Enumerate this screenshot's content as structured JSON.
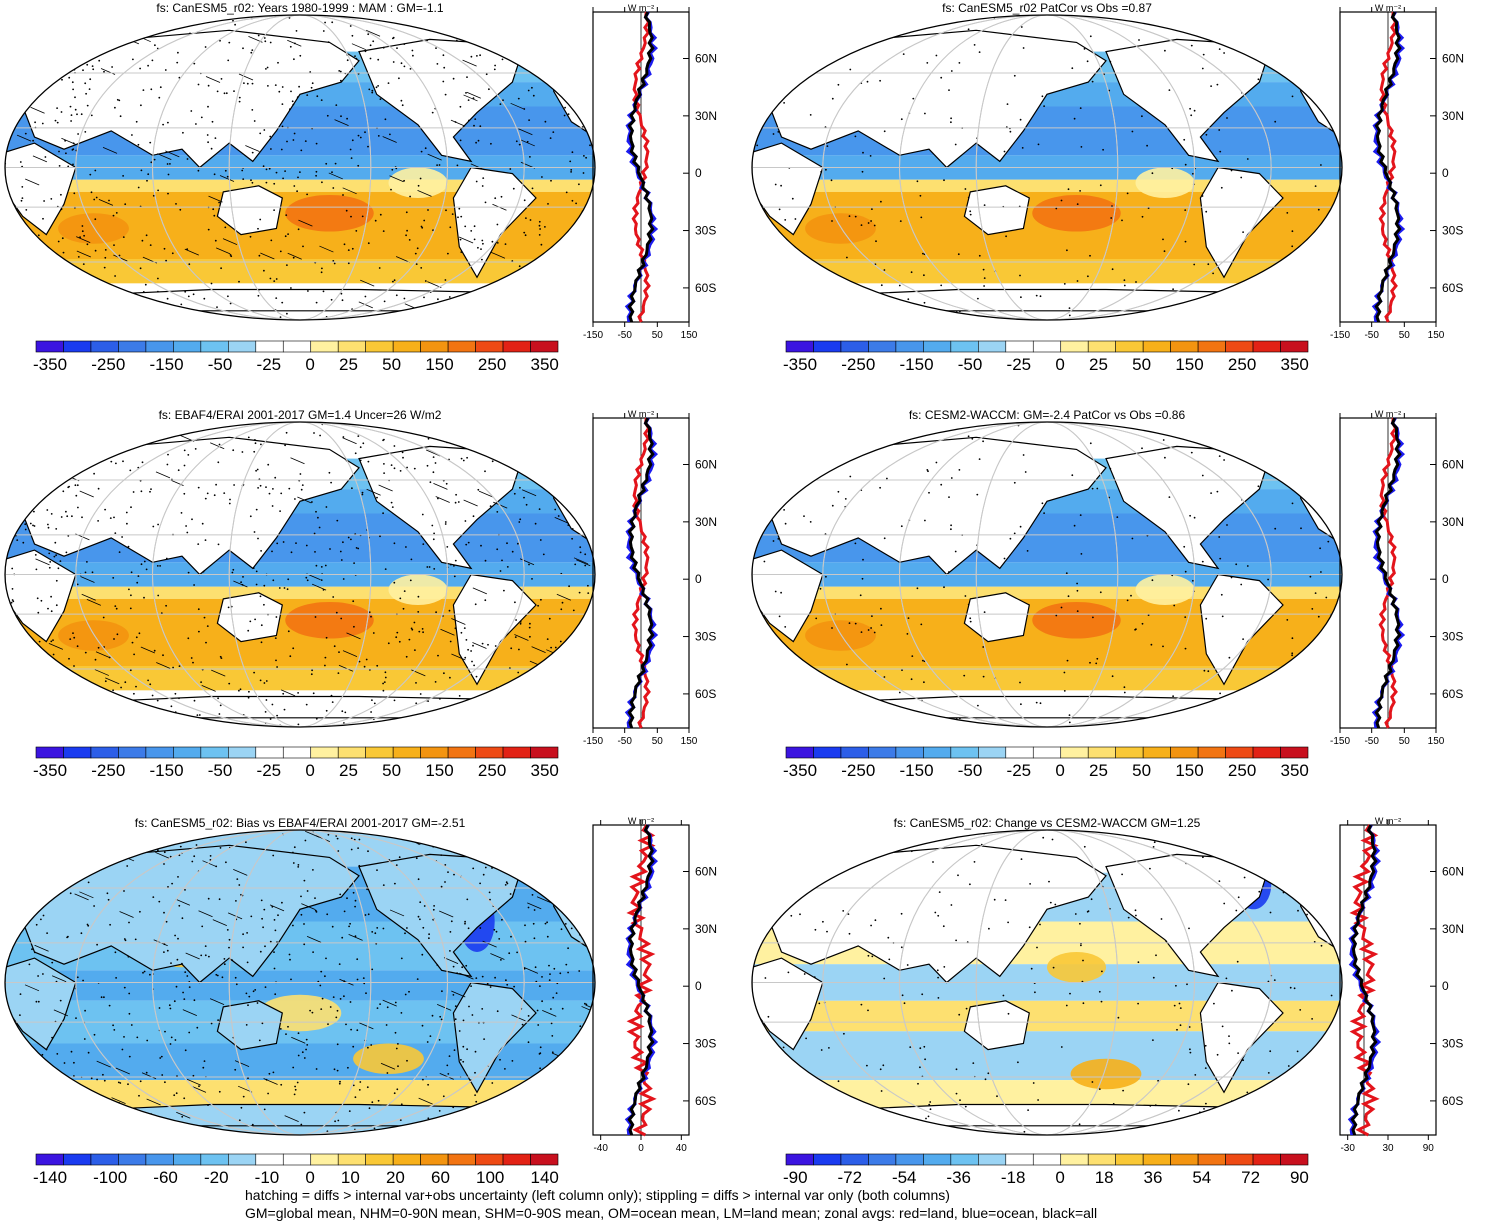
{
  "colors": {
    "land": "#ffffff",
    "ocean_blue": "#3ea4e8",
    "ocean_light_blue": "#8ccdf2",
    "ocean_orange": "#f7b922",
    "ocean_yellow": "#fde585",
    "zonal_land": "#e3141b",
    "zonal_ocean": "#1c1cf0",
    "zonal_all": "#000000"
  },
  "palette": [
    "#3b14e0",
    "#1a3bf0",
    "#2c5ee8",
    "#3c7be8",
    "#4896ec",
    "#53abee",
    "#6dc2f1",
    "#9bd4f4",
    "#ffffff",
    "#ffffff",
    "#fff1a0",
    "#fde070",
    "#f9c836",
    "#f7b01a",
    "#f39410",
    "#f27412",
    "#ee4a14",
    "#e22215",
    "#c8101e"
  ],
  "panels": [
    {
      "title": "fs: CanESM5_r02: Years 1980-1999 : MAM : GM=-1.1",
      "colorbar_labels": [
        "-350",
        "-250",
        "-150",
        "-50",
        "-25",
        "0",
        "25",
        "50",
        "150",
        "250",
        "350"
      ],
      "zonal_xticks": [
        "-150",
        "-50",
        "50",
        "150"
      ],
      "unit": "W m⁻²",
      "zonal_lat": [
        "60N",
        "30N",
        "0",
        "30S",
        "60S"
      ]
    },
    {
      "title": "fs: CanESM5_r02 PatCor vs Obs =0.87",
      "colorbar_labels": [
        "-350",
        "-250",
        "-150",
        "-50",
        "-25",
        "0",
        "25",
        "50",
        "150",
        "250",
        "350"
      ],
      "zonal_xticks": [
        "-150",
        "-50",
        "50",
        "150"
      ],
      "unit": "W m⁻²",
      "zonal_lat": [
        "60N",
        "30N",
        "0",
        "30S",
        "60S"
      ]
    },
    {
      "title": "fs: EBAF4/ERAI 2001-2017 GM=1.4 Uncer=26 W/m2",
      "colorbar_labels": [
        "-350",
        "-250",
        "-150",
        "-50",
        "-25",
        "0",
        "25",
        "50",
        "150",
        "250",
        "350"
      ],
      "zonal_xticks": [
        "-150",
        "-50",
        "50",
        "150"
      ],
      "unit": "W m⁻²",
      "zonal_lat": [
        "60N",
        "30N",
        "0",
        "30S",
        "60S"
      ]
    },
    {
      "title": "fs: CESM2-WACCM: GM=-2.4 PatCor vs Obs =0.86",
      "colorbar_labels": [
        "-350",
        "-250",
        "-150",
        "-50",
        "-25",
        "0",
        "25",
        "50",
        "150",
        "250",
        "350"
      ],
      "zonal_xticks": [
        "-150",
        "-50",
        "50",
        "150"
      ],
      "unit": "W m⁻²",
      "zonal_lat": [
        "60N",
        "30N",
        "0",
        "30S",
        "60S"
      ]
    },
    {
      "title": "fs: CanESM5_r02: Bias vs EBAF4/ERAI 2001-2017 GM=-2.51",
      "colorbar_labels": [
        "-140",
        "-100",
        "-60",
        "-20",
        "-10",
        "0",
        "10",
        "20",
        "60",
        "100",
        "140"
      ],
      "zonal_xticks": [
        "-40",
        "0",
        "40"
      ],
      "unit": "W m⁻²",
      "zonal_lat": [
        "60N",
        "30N",
        "0",
        "30S",
        "60S"
      ]
    },
    {
      "title": "fs: CanESM5_r02: Change vs CESM2-WACCM GM=1.25",
      "colorbar_labels": [
        "-90",
        "-72",
        "-54",
        "-36",
        "-18",
        "0",
        "18",
        "36",
        "54",
        "72",
        "90"
      ],
      "zonal_xticks": [
        "-30",
        "30",
        "90"
      ],
      "unit": "W m⁻²",
      "zonal_lat": [
        "60N",
        "30N",
        "0",
        "30S",
        "60S"
      ]
    }
  ],
  "footnotes": [
    "hatching = diffs > internal var+obs uncertainty (left column only); stippling = diffs > internal var only (both columns)",
    "GM=global mean, NHM=0-90N mean, SHM=0-90S mean, OM=ocean mean, LM=land mean; zonal avgs: red=land, blue=ocean, black=all"
  ]
}
